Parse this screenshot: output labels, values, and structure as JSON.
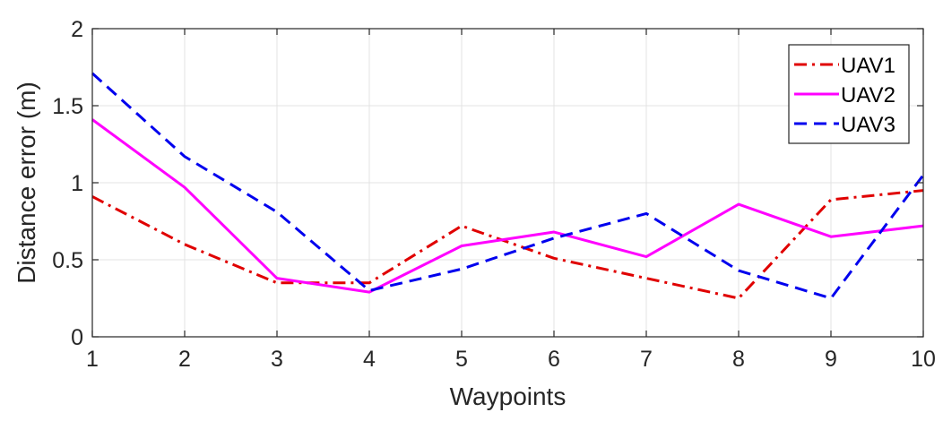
{
  "chart_data": {
    "type": "line",
    "title": "",
    "xlabel": "Waypoints",
    "ylabel": "Distance error (m)",
    "x": [
      1,
      2,
      3,
      4,
      5,
      6,
      7,
      8,
      9,
      10
    ],
    "xlim": [
      1,
      10
    ],
    "ylim": [
      0,
      2
    ],
    "xticks": [
      "1",
      "2",
      "3",
      "4",
      "5",
      "6",
      "7",
      "8",
      "9",
      "10"
    ],
    "yticks": [
      "0",
      "0.5",
      "1",
      "1.5",
      "2"
    ],
    "grid": true,
    "legend_position": "top-right",
    "series": [
      {
        "name": "UAV1",
        "color": "#e00000",
        "dash": "dash-dot",
        "values": [
          0.91,
          0.6,
          0.35,
          0.35,
          0.72,
          0.51,
          0.38,
          0.25,
          0.89,
          0.95
        ]
      },
      {
        "name": "UAV2",
        "color": "#ff00ff",
        "dash": "solid",
        "values": [
          1.41,
          0.97,
          0.38,
          0.29,
          0.59,
          0.68,
          0.52,
          0.86,
          0.65,
          0.72
        ]
      },
      {
        "name": "UAV3",
        "color": "#0000ee",
        "dash": "dashed",
        "values": [
          1.71,
          1.17,
          0.81,
          0.3,
          0.44,
          0.64,
          0.8,
          0.43,
          0.25,
          1.05
        ]
      }
    ]
  }
}
